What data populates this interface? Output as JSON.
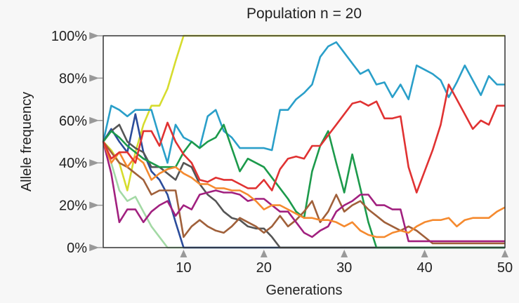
{
  "chart_data": {
    "type": "line",
    "title": "Population n = 20",
    "x_label": "Generations",
    "y_label": "Allele frequency",
    "x": [
      0,
      1,
      2,
      3,
      4,
      5,
      6,
      7,
      8,
      9,
      10,
      11,
      12,
      13,
      14,
      15,
      16,
      17,
      18,
      19,
      20,
      21,
      22,
      23,
      24,
      25,
      26,
      27,
      28,
      29,
      30,
      31,
      32,
      33,
      34,
      35,
      36,
      37,
      38,
      39,
      40,
      41,
      42,
      43,
      44,
      45,
      46,
      47,
      48,
      49,
      50
    ],
    "xlim": [
      0,
      50
    ],
    "xticks": [
      10,
      20,
      30,
      40,
      50
    ],
    "ylim": [
      0,
      100
    ],
    "yticks": [
      {
        "value": 0,
        "label": "0%"
      },
      {
        "value": 20,
        "label": "20%"
      },
      {
        "value": 40,
        "label": "40%"
      },
      {
        "value": 60,
        "label": "60%"
      },
      {
        "value": 80,
        "label": "80%"
      },
      {
        "value": 100,
        "label": "100%"
      }
    ],
    "series": [
      {
        "color": "#d6dc2e",
        "values": [
          50,
          46,
          40,
          27,
          45,
          58,
          67,
          67,
          75,
          88,
          100,
          100,
          100,
          100,
          100,
          100,
          100,
          100,
          100,
          100,
          100,
          100,
          100,
          100,
          100,
          100,
          100,
          100,
          100,
          100,
          100,
          100,
          100,
          100,
          100,
          100,
          100,
          100,
          100,
          100,
          100,
          100,
          100,
          100,
          100,
          100,
          100,
          100,
          100,
          100,
          100
        ]
      },
      {
        "color": "#2a9fc9",
        "values": [
          50,
          67,
          65,
          62,
          65,
          65,
          65,
          52,
          40,
          58,
          52,
          50,
          47,
          62,
          65,
          55,
          52,
          47,
          47,
          47,
          47,
          46,
          65,
          65,
          70,
          73,
          77,
          90,
          95,
          97,
          92,
          87,
          82,
          84,
          77,
          78,
          71,
          77,
          70,
          86,
          84,
          82,
          79,
          71,
          78,
          86,
          79,
          72,
          81,
          77,
          77
        ]
      },
      {
        "color": "#a3d9a5",
        "values": [
          50,
          40,
          27,
          22,
          24,
          17,
          10,
          5,
          0,
          0,
          0,
          0,
          0,
          0,
          0,
          0,
          0,
          0,
          0,
          0,
          0,
          0,
          0,
          0,
          0,
          0,
          0,
          0,
          0,
          0,
          0,
          0,
          0,
          0,
          0,
          0,
          0,
          0,
          0,
          0,
          0,
          0,
          0,
          0,
          0,
          0,
          0,
          0,
          0,
          0,
          0
        ]
      },
      {
        "color": "#2b4c9b",
        "values": [
          50,
          56,
          50,
          45,
          63,
          45,
          36,
          32,
          25,
          12,
          0,
          0,
          0,
          0,
          0,
          0,
          0,
          0,
          0,
          0,
          0,
          0,
          0,
          0,
          0,
          0,
          0,
          0,
          0,
          0,
          0,
          0,
          0,
          0,
          0,
          0,
          0,
          0,
          0,
          0,
          0,
          0,
          0,
          0,
          0,
          0,
          0,
          0,
          0,
          0,
          0
        ]
      },
      {
        "color": "#555555",
        "values": [
          50,
          55,
          58,
          50,
          47,
          45,
          38,
          38,
          35,
          32,
          40,
          38,
          30,
          25,
          22,
          17,
          14,
          13,
          10,
          9,
          9,
          5,
          0,
          0,
          0,
          0,
          0,
          0,
          0,
          0,
          0,
          0,
          0,
          0,
          0,
          0,
          0,
          0,
          0,
          0,
          0,
          0,
          0,
          0,
          0,
          0,
          0,
          0,
          0,
          0,
          0
        ]
      },
      {
        "color": "#1c9a4b",
        "values": [
          50,
          55,
          52,
          48,
          45,
          42,
          40,
          38,
          38,
          38,
          45,
          50,
          47,
          50,
          52,
          58,
          47,
          36,
          42,
          40,
          38,
          33,
          28,
          23,
          17,
          14,
          36,
          48,
          55,
          40,
          26,
          44,
          28,
          12,
          0,
          0,
          0,
          0,
          0,
          0,
          0,
          0,
          0,
          0,
          0,
          0,
          0,
          0,
          0,
          0,
          0
        ]
      },
      {
        "color": "#a0603a",
        "values": [
          50,
          45,
          40,
          38,
          35,
          32,
          25,
          27,
          27,
          27,
          5,
          10,
          13,
          10,
          8,
          7,
          10,
          14,
          12,
          10,
          7,
          10,
          15,
          10,
          13,
          17,
          22,
          12,
          17,
          25,
          17,
          20,
          22,
          18,
          15,
          12,
          10,
          8,
          10,
          8,
          5,
          2,
          2,
          2,
          2,
          2,
          2,
          2,
          2,
          2,
          2
        ]
      },
      {
        "color": "#a1207f",
        "values": [
          50,
          35,
          12,
          18,
          18,
          12,
          17,
          20,
          22,
          15,
          20,
          18,
          25,
          26,
          27,
          26,
          26,
          25,
          22,
          23,
          23,
          20,
          17,
          17,
          12,
          7,
          5,
          8,
          10,
          17,
          20,
          22,
          25,
          25,
          20,
          20,
          18,
          18,
          3,
          3,
          3,
          3,
          3,
          3,
          3,
          3,
          3,
          3,
          3,
          3,
          3
        ]
      },
      {
        "color": "#f58a2f",
        "values": [
          50,
          40,
          45,
          38,
          43,
          40,
          32,
          35,
          37,
          38,
          35,
          33,
          30,
          30,
          28,
          28,
          27,
          27,
          25,
          22,
          18,
          20,
          20,
          18,
          16,
          14,
          14,
          13,
          13,
          12,
          10,
          12,
          8,
          6,
          5,
          5,
          7,
          8,
          7,
          10,
          12,
          13,
          13,
          14,
          10,
          13,
          14,
          14,
          14,
          17,
          19
        ]
      },
      {
        "color": "#e03232",
        "values": [
          50,
          42,
          45,
          45,
          40,
          55,
          55,
          48,
          59,
          50,
          44,
          40,
          32,
          31,
          33,
          32,
          32,
          30,
          28,
          28,
          32,
          27,
          37,
          42,
          43,
          42,
          48,
          48,
          53,
          58,
          63,
          68,
          69,
          67,
          69,
          61,
          61,
          62,
          38,
          26,
          36,
          46,
          58,
          77,
          70,
          63,
          56,
          60,
          58,
          67,
          67
        ]
      }
    ]
  }
}
